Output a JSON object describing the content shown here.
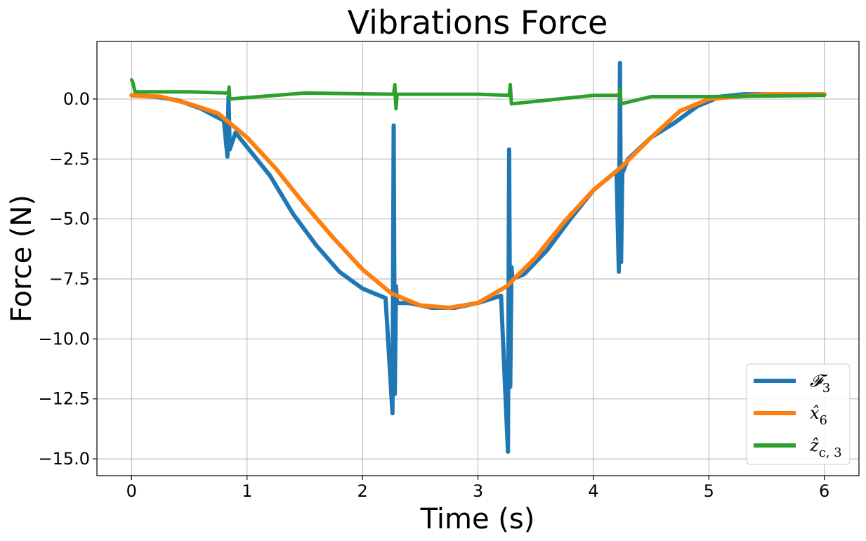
{
  "chart_data": {
    "type": "line",
    "title": "Vibrations Force",
    "xlabel": "Time (s)",
    "ylabel": "Force (N)",
    "xlim": [
      -0.3,
      6.3
    ],
    "ylim": [
      -15.7,
      2.4
    ],
    "grid": true,
    "legend_position": "lower-right",
    "x_ticks": [
      0,
      1,
      2,
      3,
      4,
      5,
      6
    ],
    "x_tick_labels": [
      "0",
      "1",
      "2",
      "3",
      "4",
      "5",
      "6"
    ],
    "y_ticks": [
      0.0,
      -2.5,
      -5.0,
      -7.5,
      -10.0,
      -12.5,
      -15.0
    ],
    "y_tick_labels": [
      "0.0",
      "−2.5",
      "−5.0",
      "−7.5",
      "−10.0",
      "−12.5",
      "−15.0"
    ],
    "series": [
      {
        "name": "𝓕₃",
        "legend_label": "𝓕",
        "legend_sub": "3",
        "color": "#1f77b4",
        "x": [
          0,
          0.2,
          0.4,
          0.6,
          0.8,
          0.83,
          0.84,
          0.85,
          0.9,
          1.0,
          1.2,
          1.4,
          1.6,
          1.8,
          2.0,
          2.2,
          2.26,
          2.27,
          2.28,
          2.29,
          2.3,
          2.4,
          2.6,
          2.8,
          3.0,
          3.2,
          3.26,
          3.27,
          3.28,
          3.29,
          3.3,
          3.4,
          3.6,
          3.8,
          4.0,
          4.2,
          4.22,
          4.23,
          4.24,
          4.25,
          4.3,
          4.5,
          4.7,
          4.9,
          5.1,
          5.3,
          5.6,
          6.0
        ],
        "y": [
          0.15,
          0.1,
          -0.05,
          -0.4,
          -0.9,
          -2.4,
          0.1,
          -2.1,
          -1.4,
          -2.0,
          -3.2,
          -4.8,
          -6.1,
          -7.2,
          -7.9,
          -8.3,
          -13.1,
          -1.1,
          -12.3,
          -7.8,
          -8.5,
          -8.5,
          -8.7,
          -8.7,
          -8.5,
          -8.2,
          -14.7,
          -2.1,
          -12.0,
          -7.0,
          -7.5,
          -7.3,
          -6.3,
          -5.0,
          -3.8,
          -3.0,
          -7.2,
          1.5,
          -6.8,
          -3.1,
          -2.5,
          -1.6,
          -1.0,
          -0.3,
          0.1,
          0.2,
          0.2,
          0.2
        ]
      },
      {
        "name": "x̂₆",
        "legend_label": "x̂",
        "legend_sub": "6",
        "color": "#ff7f0e",
        "x": [
          0,
          0.25,
          0.5,
          0.75,
          1.0,
          1.25,
          1.5,
          1.75,
          2.0,
          2.25,
          2.5,
          2.75,
          3.0,
          3.25,
          3.5,
          3.75,
          4.0,
          4.25,
          4.5,
          4.75,
          5.0,
          5.5,
          6.0
        ],
        "y": [
          0.15,
          0.1,
          -0.2,
          -0.6,
          -1.6,
          -2.9,
          -4.4,
          -5.8,
          -7.1,
          -8.1,
          -8.6,
          -8.7,
          -8.5,
          -7.8,
          -6.6,
          -5.1,
          -3.8,
          -2.8,
          -1.6,
          -0.5,
          0.0,
          0.2,
          0.2
        ]
      },
      {
        "name": "ẑ꜀,₃",
        "legend_label": "ẑ",
        "legend_sub": "c, 3",
        "color": "#2ca02c",
        "x": [
          0,
          0.01,
          0.03,
          0.5,
          0.84,
          0.845,
          0.85,
          1.5,
          2.27,
          2.28,
          2.29,
          2.3,
          3.0,
          3.27,
          3.28,
          3.29,
          4.0,
          4.22,
          4.23,
          4.24,
          4.5,
          5.0,
          6.0
        ],
        "y": [
          0.8,
          0.7,
          0.3,
          0.3,
          0.25,
          0.5,
          0.0,
          0.25,
          0.2,
          0.6,
          -0.4,
          0.2,
          0.2,
          0.15,
          0.6,
          -0.2,
          0.15,
          0.15,
          0.4,
          -0.2,
          0.1,
          0.1,
          0.15
        ]
      }
    ]
  }
}
